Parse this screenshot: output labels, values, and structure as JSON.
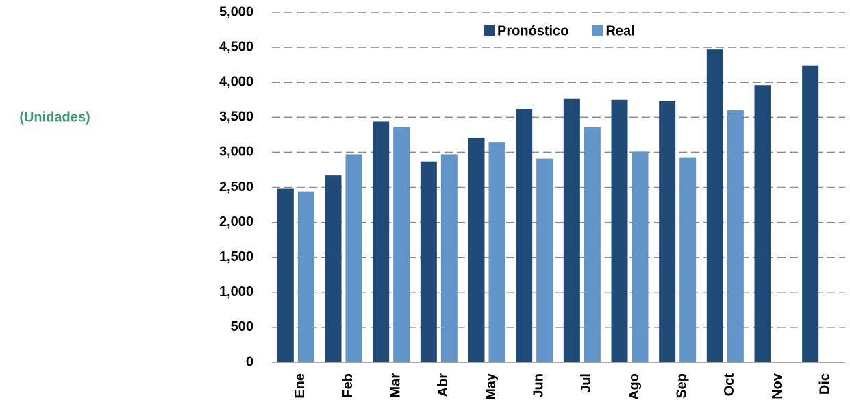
{
  "chart_data": {
    "type": "bar",
    "y_label": "(Unidades)",
    "categories": [
      "Ene",
      "Feb",
      "Mar",
      "Abr",
      "May",
      "Jun",
      "Jul",
      "Ago",
      "Sep",
      "Oct",
      "Nov",
      "Dic"
    ],
    "series": [
      {
        "name": "Pronóstico",
        "color": "#1f4a78",
        "values": [
          2480,
          2670,
          3440,
          2870,
          3210,
          3620,
          3770,
          3750,
          3730,
          4470,
          3960,
          4240
        ]
      },
      {
        "name": "Real",
        "color": "#6296ca",
        "values": [
          2440,
          2970,
          3360,
          2970,
          3140,
          2910,
          3360,
          3010,
          2930,
          3600,
          null,
          null
        ]
      }
    ],
    "ylim": [
      0,
      5000
    ],
    "yticks": [
      0,
      500,
      {
        "value": 1000,
        "label": "1,000"
      },
      {
        "value": 1500,
        "label": "1,500"
      },
      {
        "value": 2000,
        "label": "2,000"
      },
      {
        "value": 2500,
        "label": "2,500"
      },
      {
        "value": 3000,
        "label": "3,000"
      },
      {
        "value": 3500,
        "label": "3,500"
      },
      {
        "value": 4000,
        "label": "4,000"
      },
      {
        "value": 4500,
        "label": "4,500"
      },
      {
        "value": 5000,
        "label": "5,000"
      }
    ],
    "grid": true,
    "legend": "top"
  }
}
